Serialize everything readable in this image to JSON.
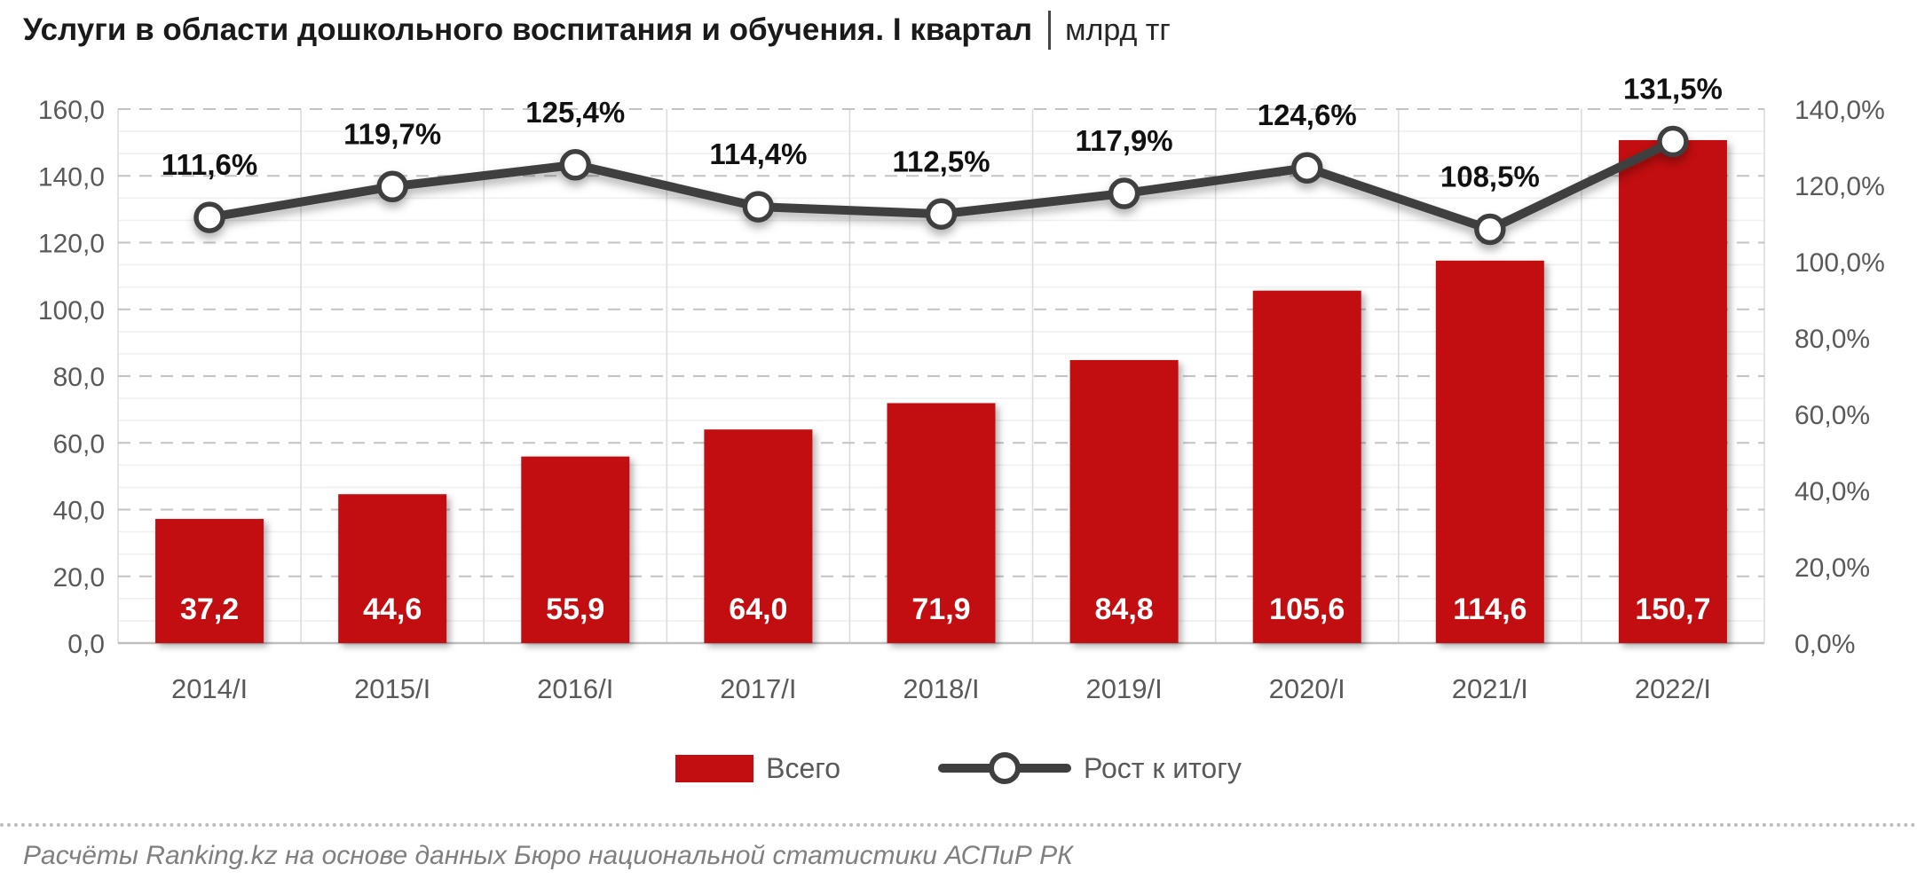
{
  "title": {
    "main": "Услуги в области дошкольного воспитания и обучения. I квартал",
    "unit": "млрд тг"
  },
  "chart_data": {
    "type": "combo-bar-line",
    "categories": [
      "2014/I",
      "2015/I",
      "2016/I",
      "2017/I",
      "2018/I",
      "2019/I",
      "2020/I",
      "2021/I",
      "2022/I"
    ],
    "series": [
      {
        "name": "Всего",
        "type": "bar",
        "axis": "left",
        "color": "#c20e10",
        "values": [
          37.2,
          44.6,
          55.9,
          64.0,
          71.9,
          84.8,
          105.6,
          114.6,
          150.7
        ],
        "labels": [
          "37,2",
          "44,6",
          "55,9",
          "64,0",
          "71,9",
          "84,8",
          "105,6",
          "114,6",
          "150,7"
        ]
      },
      {
        "name": "Рост к итогу",
        "type": "line",
        "axis": "right",
        "color": "#3f3f3f",
        "marker": "circle-white",
        "values": [
          111.6,
          119.7,
          125.4,
          114.4,
          112.5,
          117.9,
          124.6,
          108.5,
          131.5
        ],
        "labels": [
          "111,6%",
          "119,7%",
          "125,4%",
          "114,4%",
          "112,5%",
          "117,9%",
          "124,6%",
          "108,5%",
          "131,5%"
        ]
      }
    ],
    "left_axis": {
      "min": 0,
      "max": 160,
      "step": 20,
      "ticks": [
        "160,0",
        "140,0",
        "120,0",
        "100,0",
        "80,0",
        "60,0",
        "40,0",
        "20,0",
        "0,0"
      ]
    },
    "right_axis": {
      "min": 0,
      "max": 140,
      "step": 20,
      "ticks": [
        "140,0%",
        "120,0%",
        "100,0%",
        "80,0%",
        "60,0%",
        "40,0%",
        "20,0%",
        "0,0%"
      ]
    },
    "grid": {
      "horizontal_major": "dashed",
      "horizontal_minor": "solid-light",
      "vertical": "solid-light"
    },
    "legend_position": "bottom"
  },
  "legend": {
    "items": [
      {
        "label": "Всего",
        "swatch": "bar"
      },
      {
        "label": "Рост к итогу",
        "swatch": "line"
      }
    ]
  },
  "footer": {
    "source": "Расчёты Ranking.kz на основе данных Бюро национальной статистики АСПиР РК"
  },
  "colors": {
    "bar": "#c20e10",
    "line": "#3f3f3f",
    "axis_text": "#595959",
    "grid_major": "#c3c3c3",
    "grid_minor": "#f0f0f0",
    "grid_vertical": "#dcdcdc"
  }
}
